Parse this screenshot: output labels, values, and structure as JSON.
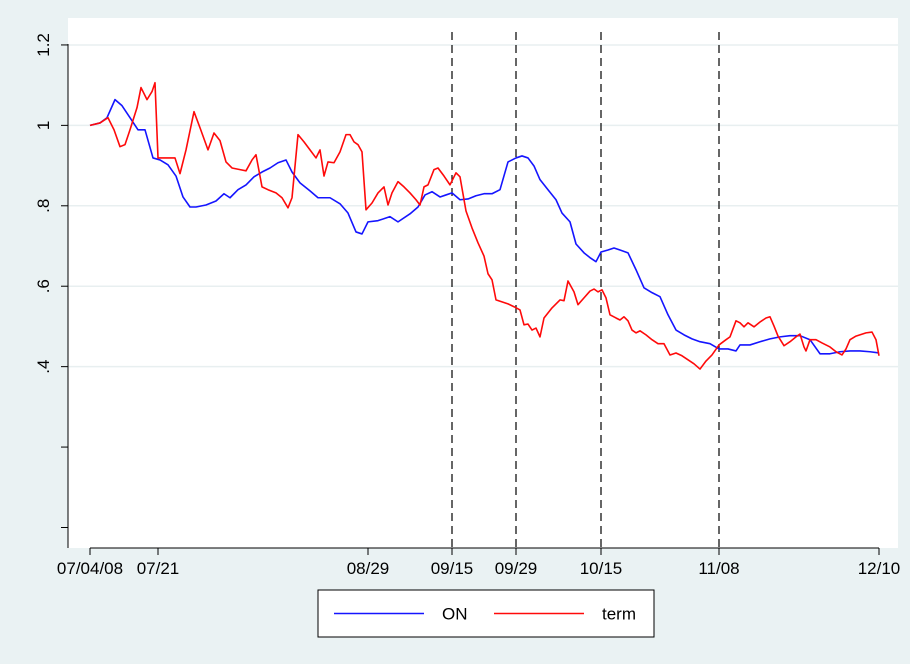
{
  "chart_data": {
    "type": "line",
    "xlim": [
      -5.5,
      202
    ],
    "xticks": [
      {
        "value": 0,
        "label": "07/04/08"
      },
      {
        "value": 17,
        "label": "07/21"
      },
      {
        "value": 69.5,
        "label": "08/29"
      },
      {
        "value": 90.5,
        "label": "09/15"
      },
      {
        "value": 106.5,
        "label": "09/29"
      },
      {
        "value": 127.75,
        "label": "10/15"
      },
      {
        "value": 157.25,
        "label": "11/08"
      },
      {
        "value": 197.25,
        "label": "12/10"
      }
    ],
    "ylim": [
      -0.051,
      1.267
    ],
    "yticks": [
      {
        "value": 0.4,
        "label": ".4"
      },
      {
        "value": 0.6,
        "label": ".6"
      },
      {
        "value": 0.8,
        "label": ".8"
      },
      1,
      1.2
    ],
    "yticks_unlabeled": [
      0,
      0.2
    ],
    "grid": true,
    "vlines": [
      90.5,
      106.5,
      127.75,
      157.25
    ],
    "legend": "bottom",
    "series": [
      {
        "name": "ON",
        "color": "#1515ff",
        "x": [
          0,
          2.5,
          4.25,
          6.25,
          8,
          10,
          12,
          13.75,
          15.75,
          17.5,
          19.5,
          21.5,
          23.25,
          25,
          26.5,
          29,
          31.5,
          33.5,
          35,
          37,
          39,
          41,
          43,
          45,
          47,
          49,
          50.5,
          52.5,
          55,
          57,
          60,
          62.5,
          64.5,
          66.5,
          68,
          69.5,
          72,
          75,
          77,
          80,
          82,
          83.75,
          85.5,
          87.5,
          89,
          90.5,
          92.5,
          94.5,
          96.5,
          98.5,
          100.5,
          102.5,
          104.5,
          106.5,
          108,
          109.5,
          111,
          112.5,
          114.5,
          116.5,
          118,
          120,
          121.5,
          123.5,
          125,
          126.5,
          127.75,
          129.5,
          131,
          132.5,
          134.5,
          136.5,
          138.5,
          140.5,
          142.5,
          144.5,
          146.5,
          148.5,
          150.5,
          152.5,
          155,
          157.25,
          159.5,
          161.5,
          162.5,
          165,
          167.5,
          170,
          172.5,
          175,
          177.5,
          180,
          182.5,
          185,
          187.5,
          190,
          192.5,
          195,
          197.25
        ],
        "values": [
          1.0,
          1.006,
          1.019,
          1.064,
          1.049,
          1.019,
          0.989,
          0.989,
          0.919,
          0.914,
          0.902,
          0.874,
          0.822,
          0.797,
          0.797,
          0.802,
          0.812,
          0.83,
          0.82,
          0.84,
          0.852,
          0.872,
          0.884,
          0.894,
          0.907,
          0.914,
          0.884,
          0.857,
          0.837,
          0.82,
          0.82,
          0.805,
          0.782,
          0.735,
          0.73,
          0.76,
          0.763,
          0.773,
          0.76,
          0.78,
          0.797,
          0.827,
          0.835,
          0.822,
          0.827,
          0.832,
          0.815,
          0.817,
          0.825,
          0.83,
          0.83,
          0.84,
          0.909,
          0.919,
          0.924,
          0.919,
          0.899,
          0.865,
          0.84,
          0.815,
          0.782,
          0.76,
          0.705,
          0.683,
          0.671,
          0.661,
          0.685,
          0.69,
          0.695,
          0.69,
          0.683,
          0.641,
          0.596,
          0.584,
          0.574,
          0.529,
          0.491,
          0.479,
          0.469,
          0.462,
          0.457,
          0.444,
          0.444,
          0.439,
          0.454,
          0.454,
          0.462,
          0.469,
          0.474,
          0.477,
          0.477,
          0.467,
          0.432,
          0.432,
          0.437,
          0.439,
          0.439,
          0.437,
          0.434
        ]
      },
      {
        "name": "term",
        "color": "#ff0a0a",
        "x": [
          0,
          2.5,
          4.5,
          6,
          7.5,
          8.75,
          10,
          11.75,
          12.75,
          14.25,
          15.5,
          16.25,
          17,
          19,
          21.25,
          22.5,
          24,
          26,
          27.5,
          29.5,
          31,
          32.5,
          34,
          35.5,
          37.5,
          39,
          40.5,
          41.5,
          43,
          44.5,
          46.5,
          48,
          49.5,
          50.5,
          52,
          53.5,
          55,
          56.5,
          57.5,
          58.5,
          59.5,
          61,
          62.5,
          64,
          65,
          66,
          67,
          68,
          69,
          70.5,
          72,
          73.5,
          74.5,
          75.5,
          77,
          78.5,
          80,
          81.5,
          82.5,
          83.5,
          84.5,
          86,
          87,
          88.5,
          90,
          91.5,
          92.5,
          94,
          95.5,
          97,
          98.5,
          99.5,
          100.5,
          101.5,
          103,
          104.5,
          106,
          107.5,
          108.5,
          109.5,
          110.5,
          111.5,
          112.5,
          113.5,
          115.5,
          117.5,
          118.5,
          119.5,
          121,
          122,
          123.5,
          125,
          126,
          127,
          128,
          129,
          130,
          131.5,
          132.5,
          133.5,
          134.5,
          135.5,
          136.5,
          137.5,
          139,
          140.5,
          142,
          143.5,
          145,
          146.5,
          148,
          149.5,
          151,
          152.5,
          154,
          155.5,
          157.25,
          159,
          160,
          161.5,
          162.5,
          163.5,
          164.5,
          166,
          167.5,
          169,
          170,
          171,
          172,
          173.5,
          175,
          176.5,
          177.5,
          178.5,
          179,
          180,
          181.5,
          183,
          185,
          186.5,
          188,
          189,
          190,
          191.5,
          194,
          195.5,
          196.5,
          197.25
        ],
        "values": [
          1.0,
          1.006,
          1.019,
          0.989,
          0.947,
          0.952,
          0.989,
          1.044,
          1.094,
          1.064,
          1.084,
          1.106,
          0.919,
          0.919,
          0.919,
          0.88,
          0.939,
          1.034,
          0.994,
          0.939,
          0.981,
          0.962,
          0.909,
          0.894,
          0.89,
          0.887,
          0.914,
          0.927,
          0.847,
          0.84,
          0.832,
          0.82,
          0.795,
          0.82,
          0.977,
          0.959,
          0.939,
          0.919,
          0.939,
          0.874,
          0.909,
          0.907,
          0.934,
          0.977,
          0.977,
          0.959,
          0.952,
          0.934,
          0.79,
          0.807,
          0.832,
          0.847,
          0.802,
          0.832,
          0.86,
          0.847,
          0.832,
          0.815,
          0.802,
          0.847,
          0.852,
          0.89,
          0.894,
          0.874,
          0.852,
          0.882,
          0.872,
          0.787,
          0.745,
          0.708,
          0.675,
          0.631,
          0.616,
          0.566,
          0.561,
          0.556,
          0.549,
          0.541,
          0.504,
          0.506,
          0.491,
          0.496,
          0.474,
          0.521,
          0.546,
          0.566,
          0.564,
          0.613,
          0.586,
          0.554,
          0.571,
          0.588,
          0.593,
          0.586,
          0.591,
          0.571,
          0.529,
          0.521,
          0.516,
          0.524,
          0.514,
          0.491,
          0.484,
          0.489,
          0.479,
          0.467,
          0.457,
          0.457,
          0.429,
          0.434,
          0.427,
          0.417,
          0.407,
          0.394,
          0.414,
          0.429,
          0.454,
          0.467,
          0.474,
          0.514,
          0.509,
          0.499,
          0.509,
          0.499,
          0.511,
          0.521,
          0.524,
          0.501,
          0.476,
          0.452,
          0.462,
          0.474,
          0.481,
          0.449,
          0.439,
          0.467,
          0.467,
          0.459,
          0.449,
          0.437,
          0.429,
          0.444,
          0.467,
          0.476,
          0.484,
          0.486,
          0.467,
          0.427
        ]
      }
    ]
  }
}
